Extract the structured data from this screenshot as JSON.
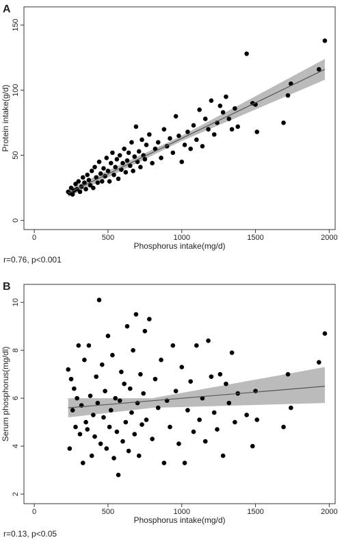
{
  "chart_data": [
    {
      "type": "scatter",
      "panel_label": "A",
      "xlabel": "Phosphorus intake(mg/d)",
      "ylabel": "Protein intake(g/d)",
      "note": "r=0.76, p<0.001",
      "color": "#000000",
      "fit_color": "#555555",
      "band_color": "#bbbbbb",
      "x": [
        230,
        240,
        250,
        260,
        270,
        280,
        290,
        300,
        310,
        320,
        330,
        340,
        350,
        360,
        370,
        380,
        390,
        400,
        410,
        420,
        430,
        440,
        450,
        460,
        470,
        480,
        490,
        500,
        510,
        520,
        530,
        540,
        550,
        560,
        570,
        580,
        590,
        600,
        610,
        620,
        630,
        640,
        650,
        660,
        670,
        680,
        690,
        700,
        710,
        720,
        730,
        740,
        750,
        760,
        780,
        800,
        820,
        840,
        860,
        880,
        900,
        920,
        940,
        960,
        980,
        1000,
        1020,
        1040,
        1060,
        1080,
        1100,
        1120,
        1140,
        1160,
        1180,
        1200,
        1220,
        1240,
        1260,
        1280,
        1300,
        1320,
        1340,
        1360,
        1380,
        1440,
        1480,
        1500,
        1510,
        1690,
        1720,
        1740,
        1930,
        1970
      ],
      "values": [
        22,
        21,
        25,
        20,
        23,
        28,
        24,
        30,
        22,
        26,
        33,
        29,
        24,
        35,
        31,
        27,
        38,
        25,
        41,
        33,
        29,
        45,
        36,
        30,
        40,
        34,
        48,
        38,
        30,
        44,
        52,
        35,
        41,
        47,
        32,
        50,
        39,
        44,
        55,
        37,
        46,
        52,
        42,
        60,
        38,
        49,
        72,
        45,
        53,
        41,
        62,
        50,
        47,
        58,
        66,
        44,
        55,
        60,
        48,
        70,
        57,
        63,
        52,
        80,
        65,
        45,
        58,
        68,
        55,
        73,
        62,
        85,
        57,
        78,
        70,
        92,
        66,
        75,
        88,
        83,
        95,
        78,
        70,
        86,
        72,
        128,
        90,
        89,
        68,
        75,
        96,
        105,
        116,
        138
      ],
      "fit": {
        "x": [
          230,
          1970
        ],
        "y": [
          21,
          116
        ]
      },
      "band": {
        "x": [
          230,
          1000,
          1970
        ],
        "lower": [
          18,
          61,
          108
        ],
        "upper": [
          24,
          65,
          124
        ]
      },
      "xlim": [
        -70,
        2040
      ],
      "ylim": [
        -7,
        164
      ],
      "xticks": [
        0,
        500,
        1000,
        1500,
        2000
      ],
      "yticks": [
        0,
        50,
        100,
        150
      ]
    },
    {
      "type": "scatter",
      "panel_label": "B",
      "xlabel": "Phosphorus intake(mg/d)",
      "ylabel": "Serum phosphorus(mg/dl)",
      "note": "r=0.13, p<0.05",
      "color": "#000000",
      "fit_color": "#555555",
      "band_color": "#bbbbbb",
      "x": [
        230,
        240,
        250,
        260,
        270,
        280,
        290,
        300,
        310,
        320,
        330,
        340,
        350,
        360,
        370,
        380,
        390,
        400,
        410,
        420,
        430,
        440,
        450,
        460,
        470,
        480,
        490,
        500,
        510,
        520,
        530,
        540,
        550,
        560,
        570,
        580,
        590,
        600,
        610,
        620,
        630,
        640,
        650,
        660,
        670,
        680,
        690,
        700,
        710,
        720,
        730,
        740,
        750,
        760,
        780,
        800,
        820,
        840,
        860,
        880,
        900,
        920,
        940,
        960,
        980,
        1000,
        1020,
        1040,
        1060,
        1080,
        1100,
        1120,
        1140,
        1160,
        1180,
        1200,
        1220,
        1240,
        1260,
        1280,
        1300,
        1320,
        1340,
        1360,
        1380,
        1440,
        1480,
        1500,
        1510,
        1690,
        1720,
        1740,
        1930,
        1970
      ],
      "values": [
        7.2,
        3.9,
        6.8,
        5.5,
        6.4,
        4.8,
        6.0,
        8.2,
        4.5,
        5.7,
        3.3,
        7.6,
        5.0,
        4.7,
        8.2,
        6.1,
        3.6,
        5.3,
        4.4,
        6.9,
        5.8,
        10.1,
        4.1,
        7.4,
        5.2,
        6.3,
        3.9,
        8.6,
        4.8,
        5.5,
        7.8,
        3.5,
        6.0,
        4.6,
        2.8,
        5.9,
        7.1,
        4.2,
        6.6,
        5.0,
        9.0,
        3.8,
        6.4,
        5.4,
        8.0,
        4.5,
        9.5,
        5.8,
        3.6,
        7.0,
        4.9,
        6.2,
        8.8,
        5.1,
        9.3,
        4.3,
        6.8,
        5.6,
        7.6,
        3.3,
        5.9,
        4.8,
        8.2,
        6.3,
        4.1,
        7.3,
        3.3,
        5.5,
        6.7,
        4.6,
        8.2,
        5.1,
        6.0,
        4.2,
        8.4,
        6.9,
        5.4,
        4.7,
        7.0,
        3.6,
        6.6,
        5.8,
        7.9,
        5.0,
        6.2,
        5.3,
        4.0,
        6.3,
        5.1,
        4.8,
        7.0,
        5.6,
        7.5,
        8.7
      ],
      "fit": {
        "x": [
          230,
          1970
        ],
        "y": [
          5.6,
          6.5
        ]
      },
      "band": {
        "x": [
          230,
          800,
          1970
        ],
        "lower": [
          5.2,
          5.6,
          5.8
        ],
        "upper": [
          6.0,
          6.0,
          7.3
        ]
      },
      "xlim": [
        -70,
        2040
      ],
      "ylim": [
        1.6,
        10.75
      ],
      "xticks": [
        0,
        500,
        1000,
        1500,
        2000
      ],
      "yticks": [
        2,
        4,
        6,
        8,
        10
      ]
    }
  ]
}
